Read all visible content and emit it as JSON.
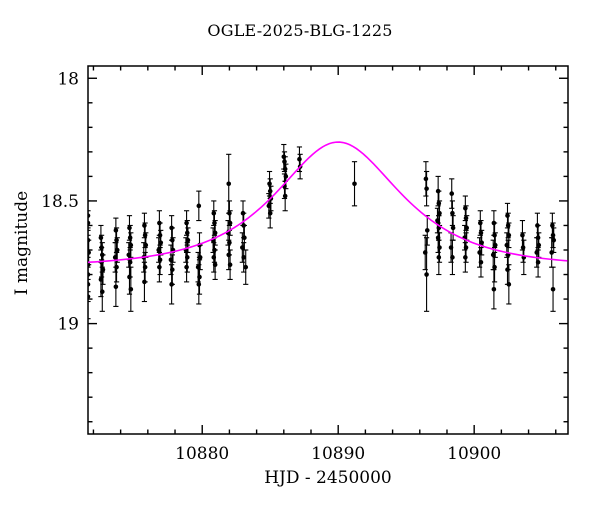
{
  "chart_data": {
    "type": "scatter",
    "title": "OGLE-2025-BLG-1225",
    "xlabel": "HJD - 2450000",
    "ylabel": "I magnitude",
    "grid": false,
    "legend": "none",
    "x_axis": {
      "min": 10871.6,
      "max": 10906.9,
      "major_ticks": [
        10880,
        10890,
        10900
      ],
      "major_tick_labels": [
        "10880",
        "10890",
        "10900"
      ],
      "minor_tick_step": 2
    },
    "y_axis": {
      "min": 17.95,
      "max": 19.45,
      "inverted": true,
      "major_ticks": [
        18,
        18.5,
        19
      ],
      "major_tick_labels": [
        "18",
        "18.5",
        "19"
      ],
      "minor_tick_step": 0.1
    },
    "model_curve": {
      "name": "point-lens-model",
      "color": "#ff00ff",
      "t0": 10890.0,
      "tE": 6.5,
      "u0": 0.75,
      "baseline_mag": 18.77,
      "peak_mag": 18.26
    },
    "marker": {
      "shape": "circle",
      "color": "#000000",
      "radius_px": 2.3
    },
    "error_bar_color": "#000000",
    "points_format": [
      "hjd_minus_2450000",
      "i_mag",
      "mag_error"
    ],
    "points": [
      [
        10871.6,
        18.56,
        0.06
      ],
      [
        10871.6,
        18.59,
        0.05
      ],
      [
        10871.6,
        18.66,
        0.05
      ],
      [
        10871.65,
        18.71,
        0.05
      ],
      [
        10871.6,
        18.76,
        0.06
      ],
      [
        10871.6,
        18.8,
        0.07
      ],
      [
        10871.6,
        18.84,
        0.07
      ],
      [
        10871.6,
        18.89,
        0.09
      ],
      [
        10872.55,
        18.65,
        0.05
      ],
      [
        10872.6,
        18.69,
        0.05
      ],
      [
        10872.65,
        18.72,
        0.05
      ],
      [
        10872.6,
        18.75,
        0.06
      ],
      [
        10872.7,
        18.78,
        0.06
      ],
      [
        10872.55,
        18.82,
        0.07
      ],
      [
        10872.65,
        18.87,
        0.08
      ],
      [
        10873.65,
        18.62,
        0.05
      ],
      [
        10873.7,
        18.66,
        0.05
      ],
      [
        10873.75,
        18.7,
        0.05
      ],
      [
        10873.6,
        18.73,
        0.06
      ],
      [
        10873.7,
        18.77,
        0.06
      ],
      [
        10873.65,
        18.85,
        0.08
      ],
      [
        10874.65,
        18.61,
        0.05
      ],
      [
        10874.7,
        18.65,
        0.05
      ],
      [
        10874.75,
        18.68,
        0.05
      ],
      [
        10874.6,
        18.72,
        0.05
      ],
      [
        10874.7,
        18.75,
        0.06
      ],
      [
        10874.65,
        18.81,
        0.07
      ],
      [
        10874.75,
        18.86,
        0.09
      ],
      [
        10875.75,
        18.6,
        0.05
      ],
      [
        10875.8,
        18.64,
        0.05
      ],
      [
        10875.85,
        18.68,
        0.05
      ],
      [
        10875.7,
        18.73,
        0.06
      ],
      [
        10875.8,
        18.77,
        0.06
      ],
      [
        10875.75,
        18.83,
        0.08
      ],
      [
        10876.85,
        18.59,
        0.05
      ],
      [
        10876.9,
        18.64,
        0.05
      ],
      [
        10876.95,
        18.67,
        0.05
      ],
      [
        10876.8,
        18.7,
        0.05
      ],
      [
        10876.9,
        18.74,
        0.06
      ],
      [
        10876.85,
        18.77,
        0.06
      ],
      [
        10877.75,
        18.61,
        0.05
      ],
      [
        10877.8,
        18.66,
        0.05
      ],
      [
        10877.85,
        18.7,
        0.05
      ],
      [
        10877.7,
        18.74,
        0.06
      ],
      [
        10877.8,
        18.78,
        0.06
      ],
      [
        10877.75,
        18.84,
        0.08
      ],
      [
        10878.85,
        18.59,
        0.05
      ],
      [
        10878.9,
        18.63,
        0.05
      ],
      [
        10878.95,
        18.66,
        0.05
      ],
      [
        10878.8,
        18.7,
        0.05
      ],
      [
        10878.9,
        18.73,
        0.06
      ],
      [
        10878.85,
        18.77,
        0.06
      ],
      [
        10879.75,
        18.52,
        0.06
      ],
      [
        10879.8,
        18.68,
        0.05
      ],
      [
        10879.85,
        18.73,
        0.05
      ],
      [
        10879.7,
        18.77,
        0.06
      ],
      [
        10879.8,
        18.81,
        0.07
      ],
      [
        10879.75,
        18.84,
        0.08
      ],
      [
        10880.85,
        18.55,
        0.05
      ],
      [
        10880.9,
        18.59,
        0.05
      ],
      [
        10880.95,
        18.63,
        0.05
      ],
      [
        10880.8,
        18.66,
        0.05
      ],
      [
        10880.9,
        18.7,
        0.05
      ],
      [
        10880.85,
        18.73,
        0.06
      ],
      [
        10880.95,
        18.76,
        0.06
      ],
      [
        10881.95,
        18.43,
        0.12
      ],
      [
        10882.0,
        18.55,
        0.05
      ],
      [
        10882.05,
        18.59,
        0.05
      ],
      [
        10881.9,
        18.63,
        0.05
      ],
      [
        10882.0,
        18.67,
        0.05
      ],
      [
        10881.95,
        18.72,
        0.06
      ],
      [
        10882.05,
        18.76,
        0.06
      ],
      [
        10883.0,
        18.55,
        0.05
      ],
      [
        10883.05,
        18.6,
        0.05
      ],
      [
        10883.1,
        18.65,
        0.05
      ],
      [
        10882.95,
        18.69,
        0.06
      ],
      [
        10883.05,
        18.73,
        0.06
      ],
      [
        10883.2,
        18.77,
        0.07
      ],
      [
        10884.95,
        18.43,
        0.05
      ],
      [
        10885.0,
        18.46,
        0.05
      ],
      [
        10885.05,
        18.49,
        0.05
      ],
      [
        10884.9,
        18.52,
        0.05
      ],
      [
        10885.0,
        18.55,
        0.06
      ],
      [
        10886.0,
        18.32,
        0.05
      ],
      [
        10886.05,
        18.34,
        0.04
      ],
      [
        10886.1,
        18.37,
        0.05
      ],
      [
        10886.15,
        18.4,
        0.05
      ],
      [
        10886.05,
        18.44,
        0.05
      ],
      [
        10886.1,
        18.48,
        0.06
      ],
      [
        10887.15,
        18.33,
        0.05
      ],
      [
        10887.2,
        18.36,
        0.05
      ],
      [
        10891.2,
        18.43,
        0.09
      ],
      [
        10896.45,
        18.41,
        0.07
      ],
      [
        10896.5,
        18.45,
        0.07
      ],
      [
        10896.55,
        18.62,
        0.06
      ],
      [
        10896.4,
        18.71,
        0.07
      ],
      [
        10896.5,
        18.8,
        0.15
      ],
      [
        10897.35,
        18.46,
        0.06
      ],
      [
        10897.4,
        18.51,
        0.05
      ],
      [
        10897.45,
        18.55,
        0.05
      ],
      [
        10897.3,
        18.58,
        0.05
      ],
      [
        10897.4,
        18.61,
        0.05
      ],
      [
        10897.35,
        18.65,
        0.06
      ],
      [
        10897.45,
        18.69,
        0.06
      ],
      [
        10897.4,
        18.73,
        0.07
      ],
      [
        10898.35,
        18.47,
        0.06
      ],
      [
        10898.4,
        18.55,
        0.05
      ],
      [
        10898.45,
        18.61,
        0.05
      ],
      [
        10898.3,
        18.69,
        0.06
      ],
      [
        10898.4,
        18.73,
        0.07
      ],
      [
        10899.35,
        18.53,
        0.05
      ],
      [
        10899.4,
        18.57,
        0.05
      ],
      [
        10899.45,
        18.61,
        0.05
      ],
      [
        10899.3,
        18.65,
        0.05
      ],
      [
        10899.4,
        18.69,
        0.06
      ],
      [
        10899.35,
        18.73,
        0.06
      ],
      [
        10900.45,
        18.59,
        0.05
      ],
      [
        10900.5,
        18.63,
        0.05
      ],
      [
        10900.55,
        18.67,
        0.05
      ],
      [
        10900.4,
        18.71,
        0.06
      ],
      [
        10900.5,
        18.75,
        0.06
      ],
      [
        10901.45,
        18.59,
        0.05
      ],
      [
        10901.5,
        18.64,
        0.05
      ],
      [
        10901.55,
        18.68,
        0.05
      ],
      [
        10901.4,
        18.72,
        0.06
      ],
      [
        10901.5,
        18.77,
        0.06
      ],
      [
        10901.45,
        18.86,
        0.08
      ],
      [
        10902.45,
        18.56,
        0.05
      ],
      [
        10902.5,
        18.6,
        0.05
      ],
      [
        10902.55,
        18.64,
        0.05
      ],
      [
        10902.4,
        18.68,
        0.05
      ],
      [
        10902.5,
        18.72,
        0.06
      ],
      [
        10902.45,
        18.78,
        0.06
      ],
      [
        10902.55,
        18.84,
        0.08
      ],
      [
        10903.55,
        18.64,
        0.06
      ],
      [
        10903.6,
        18.69,
        0.06
      ],
      [
        10903.65,
        18.73,
        0.07
      ],
      [
        10904.65,
        18.6,
        0.05
      ],
      [
        10904.7,
        18.65,
        0.05
      ],
      [
        10904.75,
        18.68,
        0.05
      ],
      [
        10904.6,
        18.71,
        0.06
      ],
      [
        10904.7,
        18.75,
        0.06
      ],
      [
        10905.75,
        18.6,
        0.05
      ],
      [
        10905.8,
        18.64,
        0.05
      ],
      [
        10905.85,
        18.66,
        0.05
      ],
      [
        10905.7,
        18.71,
        0.06
      ],
      [
        10905.8,
        18.86,
        0.09
      ]
    ]
  }
}
